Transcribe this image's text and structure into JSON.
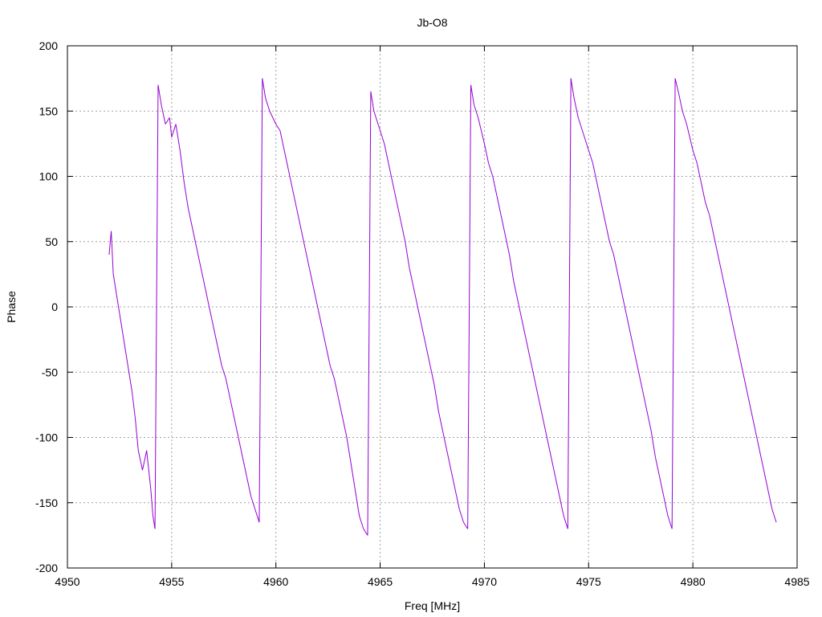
{
  "chart_data": {
    "type": "line",
    "title": "Jb-O8",
    "xlabel": "Freq [MHz]",
    "ylabel": "Phase",
    "xlim": [
      4950,
      4985
    ],
    "ylim": [
      -200,
      200
    ],
    "x_ticks": [
      4950,
      4955,
      4960,
      4965,
      4970,
      4975,
      4980,
      4985
    ],
    "y_ticks": [
      -200,
      -150,
      -100,
      -50,
      0,
      50,
      100,
      150,
      200
    ],
    "grid": true,
    "legend": "none",
    "series": [
      {
        "color": "#9400d3",
        "points": [
          [
            4952.0,
            40
          ],
          [
            4952.1,
            58
          ],
          [
            4952.2,
            25
          ],
          [
            4952.35,
            10
          ],
          [
            4952.5,
            -5
          ],
          [
            4952.7,
            -25
          ],
          [
            4952.9,
            -45
          ],
          [
            4953.1,
            -65
          ],
          [
            4953.25,
            -85
          ],
          [
            4953.4,
            -110
          ],
          [
            4953.6,
            -125
          ],
          [
            4953.8,
            -110
          ],
          [
            4954.0,
            -140
          ],
          [
            4954.1,
            -160
          ],
          [
            4954.2,
            -170
          ],
          [
            4954.35,
            170
          ],
          [
            4954.5,
            155
          ],
          [
            4954.7,
            140
          ],
          [
            4954.9,
            145
          ],
          [
            4955.0,
            130
          ],
          [
            4955.2,
            140
          ],
          [
            4955.4,
            120
          ],
          [
            4955.6,
            95
          ],
          [
            4955.8,
            75
          ],
          [
            4956.0,
            60
          ],
          [
            4956.2,
            45
          ],
          [
            4956.4,
            30
          ],
          [
            4956.6,
            15
          ],
          [
            4956.8,
            0
          ],
          [
            4957.0,
            -15
          ],
          [
            4957.2,
            -30
          ],
          [
            4957.4,
            -45
          ],
          [
            4957.6,
            -55
          ],
          [
            4957.8,
            -70
          ],
          [
            4958.0,
            -85
          ],
          [
            4958.2,
            -100
          ],
          [
            4958.4,
            -115
          ],
          [
            4958.6,
            -130
          ],
          [
            4958.8,
            -145
          ],
          [
            4959.0,
            -155
          ],
          [
            4959.2,
            -165
          ],
          [
            4959.35,
            175
          ],
          [
            4959.5,
            160
          ],
          [
            4959.7,
            150
          ],
          [
            4960.0,
            140
          ],
          [
            4960.2,
            135
          ],
          [
            4960.4,
            120
          ],
          [
            4960.6,
            105
          ],
          [
            4960.8,
            90
          ],
          [
            4961.0,
            75
          ],
          [
            4961.2,
            60
          ],
          [
            4961.4,
            45
          ],
          [
            4961.6,
            30
          ],
          [
            4961.8,
            15
          ],
          [
            4962.0,
            0
          ],
          [
            4962.2,
            -15
          ],
          [
            4962.4,
            -30
          ],
          [
            4962.6,
            -45
          ],
          [
            4962.8,
            -55
          ],
          [
            4963.0,
            -70
          ],
          [
            4963.2,
            -85
          ],
          [
            4963.4,
            -100
          ],
          [
            4963.6,
            -120
          ],
          [
            4963.8,
            -140
          ],
          [
            4964.0,
            -160
          ],
          [
            4964.2,
            -170
          ],
          [
            4964.4,
            -175
          ],
          [
            4964.55,
            165
          ],
          [
            4964.7,
            150
          ],
          [
            4965.0,
            135
          ],
          [
            4965.2,
            125
          ],
          [
            4965.4,
            110
          ],
          [
            4965.6,
            95
          ],
          [
            4965.8,
            80
          ],
          [
            4966.0,
            65
          ],
          [
            4966.2,
            50
          ],
          [
            4966.4,
            30
          ],
          [
            4966.6,
            15
          ],
          [
            4966.8,
            0
          ],
          [
            4967.0,
            -15
          ],
          [
            4967.2,
            -30
          ],
          [
            4967.4,
            -45
          ],
          [
            4967.6,
            -60
          ],
          [
            4967.8,
            -80
          ],
          [
            4968.0,
            -95
          ],
          [
            4968.2,
            -110
          ],
          [
            4968.4,
            -125
          ],
          [
            4968.6,
            -140
          ],
          [
            4968.8,
            -155
          ],
          [
            4969.0,
            -165
          ],
          [
            4969.2,
            -170
          ],
          [
            4969.35,
            170
          ],
          [
            4969.5,
            155
          ],
          [
            4969.7,
            145
          ],
          [
            4970.0,
            125
          ],
          [
            4970.2,
            110
          ],
          [
            4970.4,
            100
          ],
          [
            4970.6,
            85
          ],
          [
            4970.8,
            70
          ],
          [
            4971.0,
            55
          ],
          [
            4971.2,
            40
          ],
          [
            4971.4,
            20
          ],
          [
            4971.6,
            5
          ],
          [
            4971.8,
            -10
          ],
          [
            4972.0,
            -25
          ],
          [
            4972.2,
            -40
          ],
          [
            4972.4,
            -55
          ],
          [
            4972.6,
            -70
          ],
          [
            4972.8,
            -85
          ],
          [
            4973.0,
            -100
          ],
          [
            4973.2,
            -115
          ],
          [
            4973.4,
            -130
          ],
          [
            4973.6,
            -145
          ],
          [
            4973.8,
            -160
          ],
          [
            4974.0,
            -170
          ],
          [
            4974.15,
            175
          ],
          [
            4974.3,
            160
          ],
          [
            4974.5,
            145
          ],
          [
            4974.7,
            135
          ],
          [
            4975.0,
            120
          ],
          [
            4975.2,
            110
          ],
          [
            4975.4,
            95
          ],
          [
            4975.6,
            80
          ],
          [
            4975.8,
            65
          ],
          [
            4976.0,
            50
          ],
          [
            4976.2,
            40
          ],
          [
            4976.4,
            25
          ],
          [
            4976.6,
            10
          ],
          [
            4976.8,
            -5
          ],
          [
            4977.0,
            -20
          ],
          [
            4977.2,
            -35
          ],
          [
            4977.4,
            -50
          ],
          [
            4977.6,
            -65
          ],
          [
            4977.8,
            -80
          ],
          [
            4978.0,
            -95
          ],
          [
            4978.2,
            -115
          ],
          [
            4978.4,
            -130
          ],
          [
            4978.6,
            -145
          ],
          [
            4978.8,
            -160
          ],
          [
            4979.0,
            -170
          ],
          [
            4979.15,
            175
          ],
          [
            4979.3,
            165
          ],
          [
            4979.5,
            150
          ],
          [
            4979.7,
            140
          ],
          [
            4980.0,
            120
          ],
          [
            4980.2,
            110
          ],
          [
            4980.4,
            95
          ],
          [
            4980.6,
            80
          ],
          [
            4980.8,
            70
          ],
          [
            4981.0,
            55
          ],
          [
            4981.2,
            40
          ],
          [
            4981.4,
            25
          ],
          [
            4981.6,
            10
          ],
          [
            4981.8,
            -5
          ],
          [
            4982.0,
            -20
          ],
          [
            4982.2,
            -35
          ],
          [
            4982.4,
            -50
          ],
          [
            4982.6,
            -65
          ],
          [
            4982.8,
            -80
          ],
          [
            4983.0,
            -95
          ],
          [
            4983.2,
            -110
          ],
          [
            4983.4,
            -125
          ],
          [
            4983.6,
            -140
          ],
          [
            4983.8,
            -155
          ],
          [
            4984.0,
            -165
          ]
        ]
      }
    ]
  }
}
